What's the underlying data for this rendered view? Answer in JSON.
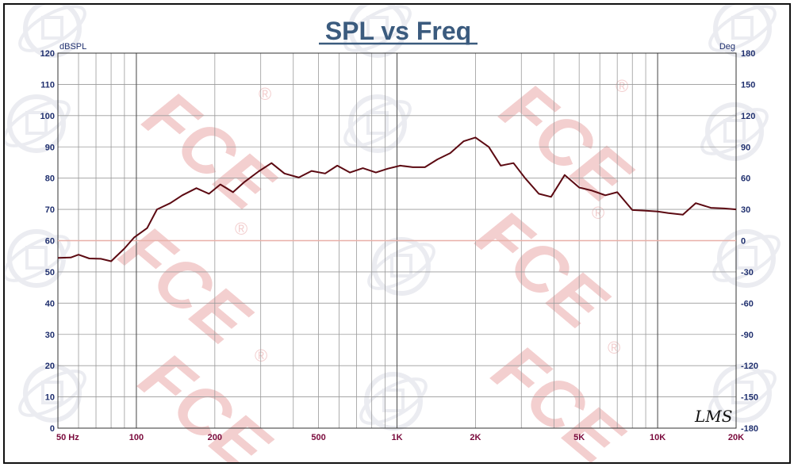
{
  "colors": {
    "title": "#3b5b7e",
    "tick_label_left": "#1f2f6e",
    "tick_label_bottom": "#7a0a3c",
    "tick_label_right": "#1f2f6e",
    "curve": "#5c0a12",
    "zero_phase_line": "#e8b0a8",
    "grid": "#9a9a9a",
    "watermark": "#f3cfcf",
    "frame": "#111111"
  },
  "watermark": {
    "text": "FCE",
    "mark": "®"
  },
  "signature": "LMS",
  "chart_data": {
    "type": "line",
    "title": "SPL vs Freq",
    "ylabel": "dBSPL",
    "y2label": "Deg",
    "x_scale": "log",
    "xlim": [
      50,
      20000
    ],
    "ylim": [
      0,
      120
    ],
    "y2lim": [
      -180,
      180
    ],
    "grid": true,
    "x_ticks": [
      {
        "value": 50,
        "label": "50  Hz"
      },
      {
        "value": 100,
        "label": "100"
      },
      {
        "value": 200,
        "label": "200"
      },
      {
        "value": 500,
        "label": "500"
      },
      {
        "value": 1000,
        "label": "1K"
      },
      {
        "value": 2000,
        "label": "2K"
      },
      {
        "value": 5000,
        "label": "5K"
      },
      {
        "value": 10000,
        "label": "10K"
      },
      {
        "value": 20000,
        "label": "20K"
      }
    ],
    "y_ticks": [
      {
        "value": 0,
        "label": "0"
      },
      {
        "value": 10,
        "label": "10"
      },
      {
        "value": 20,
        "label": "20"
      },
      {
        "value": 30,
        "label": "30"
      },
      {
        "value": 40,
        "label": "40"
      },
      {
        "value": 50,
        "label": "50"
      },
      {
        "value": 60,
        "label": "60"
      },
      {
        "value": 70,
        "label": "70"
      },
      {
        "value": 80,
        "label": "80"
      },
      {
        "value": 90,
        "label": "90"
      },
      {
        "value": 100,
        "label": "100"
      },
      {
        "value": 110,
        "label": "110"
      },
      {
        "value": 120,
        "label": "120"
      }
    ],
    "y2_ticks": [
      {
        "value": -180,
        "label": "-180"
      },
      {
        "value": -150,
        "label": "-150"
      },
      {
        "value": -120,
        "label": "-120"
      },
      {
        "value": -90,
        "label": "-90"
      },
      {
        "value": -60,
        "label": "-60"
      },
      {
        "value": -30,
        "label": "-30"
      },
      {
        "value": 0,
        "label": "0"
      },
      {
        "value": 30,
        "label": "30"
      },
      {
        "value": 60,
        "label": "60"
      },
      {
        "value": 90,
        "label": "90"
      },
      {
        "value": 120,
        "label": "120"
      },
      {
        "value": 150,
        "label": "150"
      },
      {
        "value": 180,
        "label": "180"
      }
    ],
    "reference_lines": [
      {
        "axis": "y2",
        "value": 0
      }
    ],
    "series": [
      {
        "axis": "y",
        "x": [
          50,
          56,
          60,
          66,
          73,
          80,
          90,
          98,
          110,
          120,
          135,
          150,
          170,
          190,
          210,
          235,
          260,
          295,
          330,
          370,
          420,
          470,
          530,
          590,
          660,
          740,
          830,
          920,
          1030,
          1150,
          1280,
          1430,
          1600,
          1800,
          2000,
          2250,
          2500,
          2800,
          3100,
          3500,
          3900,
          4400,
          5000,
          5600,
          6300,
          7000,
          8000,
          9000,
          10000,
          11000,
          12500,
          14000,
          16000,
          18000,
          20000
        ],
        "values": [
          54.5,
          54.6,
          55.5,
          54.3,
          54.2,
          53.4,
          57.5,
          61,
          64,
          70,
          72,
          74.5,
          76.8,
          75,
          78,
          75.5,
          78.8,
          82.2,
          84.8,
          81.5,
          80.2,
          82.3,
          81.5,
          84,
          81.8,
          83.2,
          81.8,
          83,
          84,
          83.5,
          83.5,
          86,
          88,
          91.8,
          93,
          90,
          84,
          84.8,
          80,
          75,
          74,
          81,
          77,
          76,
          74.5,
          75.5,
          69.8,
          69.6,
          69.3,
          68.8,
          68.3,
          72,
          70.5,
          70.3,
          70
        ]
      }
    ]
  }
}
